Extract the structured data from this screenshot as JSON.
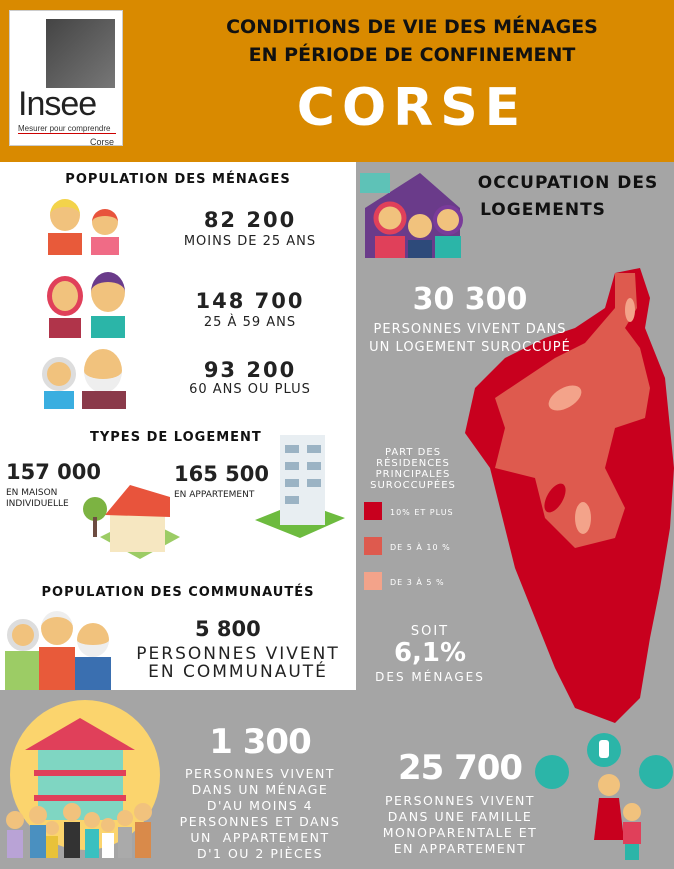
{
  "header": {
    "logo_name": "Insee",
    "logo_tagline": "Mesurer pour comprendre",
    "logo_region": "Corse",
    "title_line1": "CONDITIONS DE VIE DES MÉNAGES",
    "title_line2": "EN PÉRIODE DE CONFINEMENT",
    "region": "CORSE"
  },
  "population_menages": {
    "title": "POPULATION DES MÉNAGES",
    "groups": [
      {
        "value": "82 200",
        "label": "MOINS DE 25 ANS"
      },
      {
        "value": "148 700",
        "label": "25 À 59 ANS"
      },
      {
        "value": "93 200",
        "label": "60 ANS OU PLUS"
      }
    ]
  },
  "types_logement": {
    "title": "TYPES DE LOGEMENT",
    "maison": {
      "value": "157 000",
      "label_line1": "EN MAISON",
      "label_line2": "INDIVIDUELLE"
    },
    "appartement": {
      "value": "165 500",
      "label": "EN APPARTEMENT"
    }
  },
  "communautes": {
    "title": "POPULATION DES COMMUNAUTÉS",
    "value": "5 800",
    "label_line1": "PERSONNES VIVENT",
    "label_line2": "EN COMMUNAUTÉ"
  },
  "occupation": {
    "title_line1": "OCCUPATION DES",
    "title_line2": "LOGEMENTS",
    "value": "30 300",
    "label_line1": "PERSONNES VIVENT DANS",
    "label_line2": "UN LOGEMENT SUROCCUPÉ",
    "share_prefix": "SOIT",
    "share": "6,1%",
    "share_suffix": "DES MÉNAGES"
  },
  "legend": {
    "title": [
      "PART DES",
      "RÉSIDENCES",
      "PRINCIPALES",
      "SUROCCUPÉES"
    ],
    "items": [
      {
        "label": "10% ET PLUS",
        "color": "#c8001e"
      },
      {
        "label": "DE 5 À 10 %",
        "color": "#de5a4e"
      },
      {
        "label": "DE 3 À 5 %",
        "color": "#f3a38a"
      }
    ]
  },
  "bottom": {
    "left": {
      "value": "1 300",
      "lines": [
        "PERSONNES VIVENT",
        "DANS UN MÉNAGE",
        "D'AU MOINS 4",
        "PERSONNES ET DANS",
        "UN  APPARTEMENT",
        "D'1 OU 2 PIÈCES"
      ]
    },
    "right": {
      "value": "25 700",
      "lines": [
        "PERSONNES VIVENT",
        "DANS UNE FAMILLE",
        "MONOPARENTALE ET",
        "EN APPARTEMENT"
      ]
    }
  },
  "colors": {
    "header": "#d98a00",
    "panel_gray": "#a5a5a5",
    "accent_teal": "#2bb5a8"
  }
}
